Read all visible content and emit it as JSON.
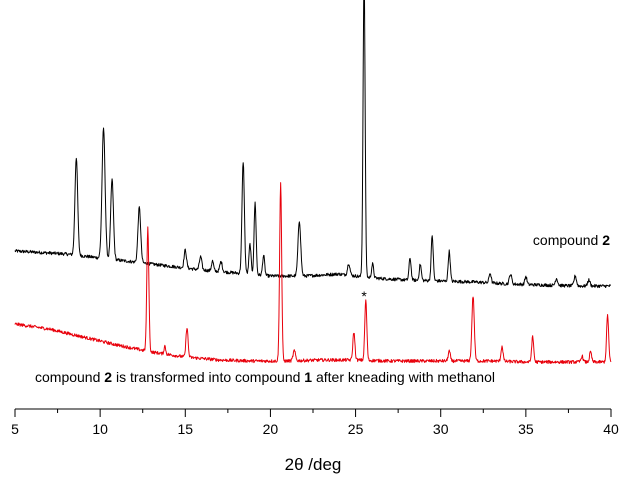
{
  "chart_data": {
    "type": "line",
    "title": "",
    "xlabel": "2θ /deg",
    "xlabel_parts": {
      "theta": "2θ",
      "unit": " /deg"
    },
    "ylabel": "",
    "xlim": [
      5,
      40
    ],
    "x_ticks": [
      5,
      10,
      15,
      20,
      25,
      30,
      35,
      40
    ],
    "y_axis_shown": false,
    "grid": false,
    "legend": "none",
    "annotations": {
      "top_label": {
        "prefix": "compound ",
        "bold": "2",
        "suffix": ""
      },
      "bottom_label": {
        "prefix": "compound ",
        "bold1": "2",
        "middle": " is transformed into compound ",
        "bold2": "1",
        "suffix": " after kneading with methanol"
      },
      "asterisk": "*",
      "asterisk_x": 25.5
    },
    "series": [
      {
        "color": "#000000",
        "trace": "upper",
        "baseline": [
          [
            5,
            195
          ],
          [
            8,
            192
          ],
          [
            10,
            188
          ],
          [
            12,
            184
          ],
          [
            14,
            180
          ],
          [
            16,
            176
          ],
          [
            18,
            173
          ],
          [
            20,
            170
          ],
          [
            22,
            170
          ],
          [
            24,
            172
          ],
          [
            26,
            168
          ],
          [
            28,
            166
          ],
          [
            30,
            165
          ],
          [
            32,
            164
          ],
          [
            34,
            162
          ],
          [
            36,
            161
          ],
          [
            38,
            160
          ],
          [
            40,
            160
          ]
        ],
        "peaks": [
          {
            "x": 8.6,
            "height": 98,
            "width": 0.08
          },
          {
            "x": 10.2,
            "height": 130,
            "width": 0.09
          },
          {
            "x": 10.7,
            "height": 80,
            "width": 0.08
          },
          {
            "x": 12.3,
            "height": 55,
            "width": 0.08
          },
          {
            "x": 15.0,
            "height": 18,
            "width": 0.07
          },
          {
            "x": 15.9,
            "height": 13,
            "width": 0.07
          },
          {
            "x": 16.6,
            "height": 10,
            "width": 0.06
          },
          {
            "x": 17.1,
            "height": 10,
            "width": 0.07
          },
          {
            "x": 18.4,
            "height": 112,
            "width": 0.07
          },
          {
            "x": 18.8,
            "height": 30,
            "width": 0.06
          },
          {
            "x": 19.1,
            "height": 72,
            "width": 0.06
          },
          {
            "x": 19.6,
            "height": 20,
            "width": 0.06
          },
          {
            "x": 21.7,
            "height": 55,
            "width": 0.08
          },
          {
            "x": 24.6,
            "height": 12,
            "width": 0.07
          },
          {
            "x": 25.5,
            "height": 300,
            "width": 0.06
          },
          {
            "x": 26.0,
            "height": 14,
            "width": 0.06
          },
          {
            "x": 28.2,
            "height": 22,
            "width": 0.06
          },
          {
            "x": 28.8,
            "height": 16,
            "width": 0.06
          },
          {
            "x": 29.5,
            "height": 45,
            "width": 0.06
          },
          {
            "x": 30.5,
            "height": 30,
            "width": 0.06
          },
          {
            "x": 32.9,
            "height": 10,
            "width": 0.06
          },
          {
            "x": 34.1,
            "height": 10,
            "width": 0.07
          },
          {
            "x": 35.0,
            "height": 8,
            "width": 0.06
          },
          {
            "x": 36.8,
            "height": 7,
            "width": 0.07
          },
          {
            "x": 37.9,
            "height": 10,
            "width": 0.07
          },
          {
            "x": 38.7,
            "height": 6,
            "width": 0.07
          }
        ]
      },
      {
        "color": "#e8000b",
        "trace": "lower",
        "baseline": [
          [
            5,
            133
          ],
          [
            7,
            128
          ],
          [
            9,
            120
          ],
          [
            11,
            112
          ],
          [
            13,
            105
          ],
          [
            15,
            100
          ],
          [
            17,
            97
          ],
          [
            19,
            96
          ],
          [
            21,
            96
          ],
          [
            23,
            97
          ],
          [
            25,
            97
          ],
          [
            27,
            96
          ],
          [
            29,
            96
          ],
          [
            31,
            96
          ],
          [
            33,
            96
          ],
          [
            35,
            95
          ],
          [
            37,
            95
          ],
          [
            40,
            95
          ]
        ],
        "peaks": [
          {
            "x": 12.8,
            "height": 123,
            "width": 0.06
          },
          {
            "x": 13.8,
            "height": 8,
            "width": 0.05
          },
          {
            "x": 15.1,
            "height": 30,
            "width": 0.06
          },
          {
            "x": 20.6,
            "height": 178,
            "width": 0.06
          },
          {
            "x": 21.4,
            "height": 10,
            "width": 0.07
          },
          {
            "x": 24.9,
            "height": 28,
            "width": 0.06
          },
          {
            "x": 25.6,
            "height": 60,
            "width": 0.06
          },
          {
            "x": 30.5,
            "height": 10,
            "width": 0.06
          },
          {
            "x": 31.9,
            "height": 65,
            "width": 0.07
          },
          {
            "x": 33.6,
            "height": 15,
            "width": 0.06
          },
          {
            "x": 35.4,
            "height": 25,
            "width": 0.06
          },
          {
            "x": 38.3,
            "height": 6,
            "width": 0.06
          },
          {
            "x": 38.8,
            "height": 10,
            "width": 0.06
          },
          {
            "x": 39.8,
            "height": 47,
            "width": 0.06
          }
        ]
      }
    ]
  }
}
